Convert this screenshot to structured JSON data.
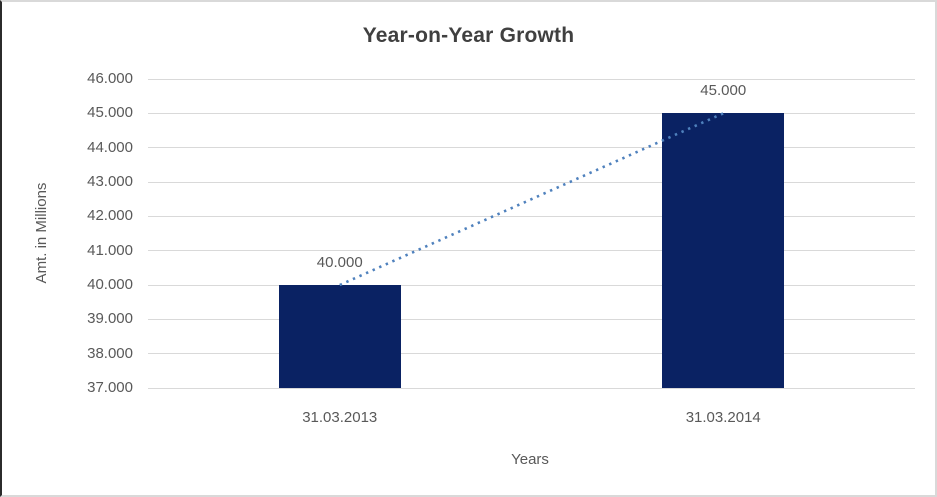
{
  "chart_data": {
    "type": "bar",
    "title": "Year-on-Year Growth",
    "xlabel": "Years",
    "ylabel": "Amt. in Millions",
    "categories": [
      "31.03.2013",
      "31.03.2014"
    ],
    "values": [
      40000,
      45000
    ],
    "value_labels": [
      "40.000",
      "45.000"
    ],
    "series": [
      {
        "name": "Amt. in Millions",
        "values": [
          40000,
          45000
        ]
      }
    ],
    "y_ticks": [
      "46.000",
      "45.000",
      "44.000",
      "43.000",
      "42.000",
      "41.000",
      "40.000",
      "39.000",
      "38.000",
      "37.000"
    ],
    "ylim": [
      37000,
      46000
    ],
    "y_step": 1000,
    "grid": true,
    "legend_position": "none",
    "trendline": {
      "type": "linear",
      "style": "dotted",
      "connects_values": [
        40000,
        45000
      ]
    },
    "colors": {
      "bar": "#0a2263",
      "trendline": "#4f81bd",
      "gridline": "#d9d9d9",
      "title_text": "#404040",
      "axis_text": "#595959"
    }
  }
}
